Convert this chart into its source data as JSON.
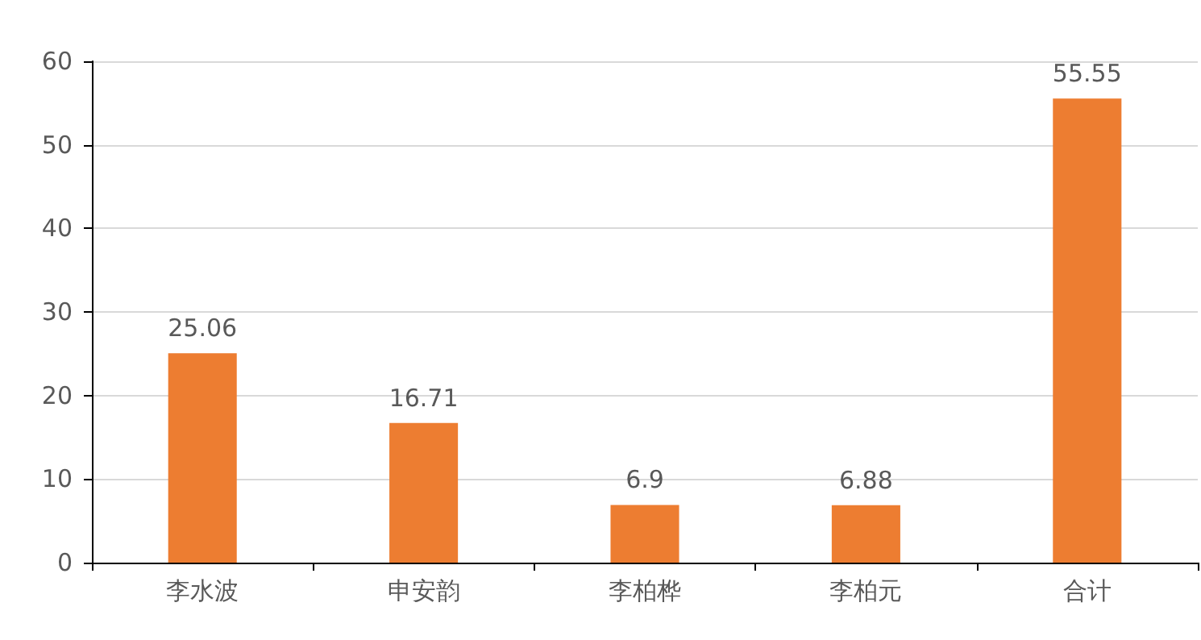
{
  "chart_data": {
    "type": "bar",
    "categories": [
      "李水波",
      "申安韵",
      "李柏桦",
      "李柏元",
      "合计"
    ],
    "values": [
      25.06,
      16.71,
      6.9,
      6.88,
      55.55
    ],
    "color": "#ed7d31",
    "data_labels": true,
    "ylim": [
      0,
      60
    ],
    "yticks": [
      0,
      10,
      20,
      30,
      40,
      50,
      60
    ],
    "grid": "y"
  }
}
